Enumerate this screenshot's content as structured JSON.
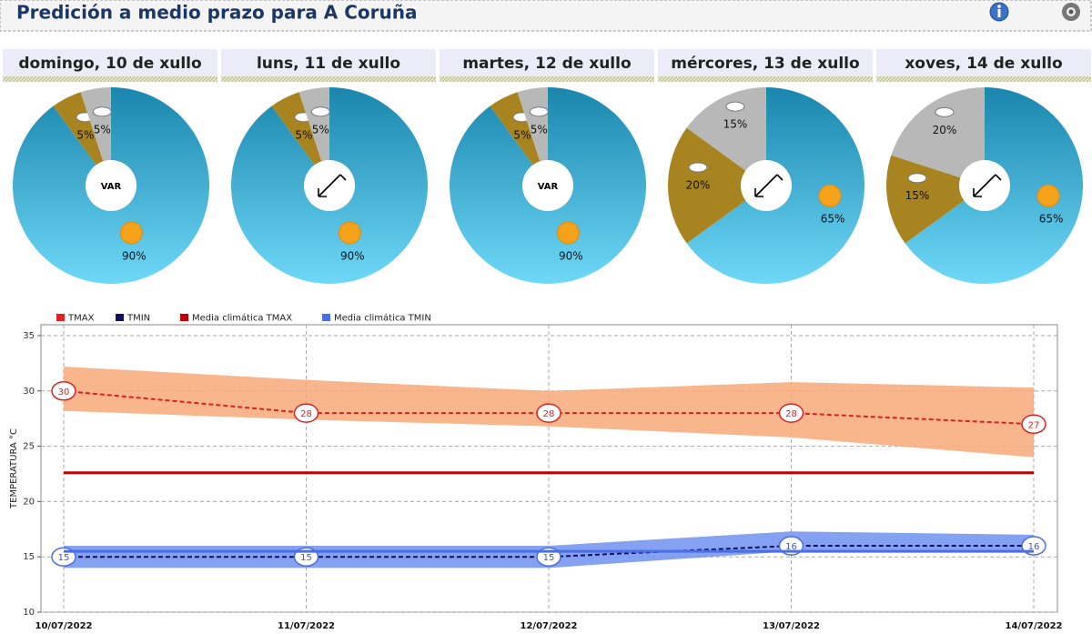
{
  "header": {
    "title": "Predición a medio prazo para A Coruña"
  },
  "chart_data": [
    {
      "type": "pie",
      "title": "domingo, 10 de xullo",
      "values": [
        90,
        5,
        5
      ],
      "value_labels": [
        "90%",
        "5%",
        "5%"
      ],
      "colors": [
        "#35a9d6",
        "#a88420",
        "#b8b8b8"
      ],
      "center_label": "VAR"
    },
    {
      "type": "pie",
      "title": "luns, 11 de xullo",
      "values": [
        90,
        5,
        5
      ],
      "value_labels": [
        "90%",
        "5%",
        "5%"
      ],
      "colors": [
        "#35a9d6",
        "#a88420",
        "#b8b8b8"
      ]
    },
    {
      "type": "pie",
      "title": "martes, 12 de xullo",
      "values": [
        90,
        5,
        5
      ],
      "value_labels": [
        "90%",
        "5%",
        "5%"
      ],
      "colors": [
        "#35a9d6",
        "#a88420",
        "#b8b8b8"
      ],
      "center_label": "VAR"
    },
    {
      "type": "pie",
      "title": "mércores, 13 de xullo",
      "values": [
        65,
        20,
        15
      ],
      "value_labels": [
        "65%",
        "20%",
        "15%"
      ],
      "colors": [
        "#35a9d6",
        "#a88420",
        "#b8b8b8"
      ]
    },
    {
      "type": "pie",
      "title": "xoves, 14 de xullo",
      "values": [
        65,
        15,
        20
      ],
      "value_labels": [
        "65%",
        "15%",
        "20%"
      ],
      "colors": [
        "#35a9d6",
        "#a88420",
        "#b8b8b8"
      ]
    },
    {
      "type": "line",
      "y_label": "TEMPERATURA °C",
      "categories": [
        "10/07/2022",
        "11/07/2022",
        "12/07/2022",
        "13/07/2022",
        "14/07/2022"
      ],
      "ylim": [
        10,
        35
      ],
      "yticks": [
        10,
        15,
        20,
        25,
        30,
        35
      ],
      "grid": true,
      "series": [
        {
          "name": "TMAX",
          "color": "#e02020",
          "dashed": true,
          "labels": true,
          "values": [
            30,
            28,
            28,
            28,
            27
          ]
        },
        {
          "name": "TMIN",
          "color": "#101060",
          "dashed": true,
          "labels": true,
          "values": [
            15,
            15,
            15,
            16,
            16
          ]
        },
        {
          "name": "Media climática TMAX",
          "color": "#c00000",
          "values": [
            22.6,
            22.6,
            22.6,
            22.6,
            22.6
          ]
        },
        {
          "name": "Media climática TMIN",
          "color": "#4a6ee8",
          "values": [
            15.5,
            15.5,
            15.5,
            15.5,
            15.5
          ]
        }
      ],
      "bands": [
        {
          "color": "#f8a878",
          "lower": [
            28.2,
            27.4,
            26.8,
            25.8,
            24.0
          ],
          "upper": [
            32.2,
            31.0,
            30.0,
            30.8,
            30.3
          ]
        },
        {
          "color": "#7090f0",
          "lower": [
            14.0,
            14.0,
            14.0,
            15.5,
            15.5
          ],
          "upper": [
            16.0,
            16.0,
            16.0,
            17.3,
            17.0
          ]
        }
      ]
    }
  ]
}
